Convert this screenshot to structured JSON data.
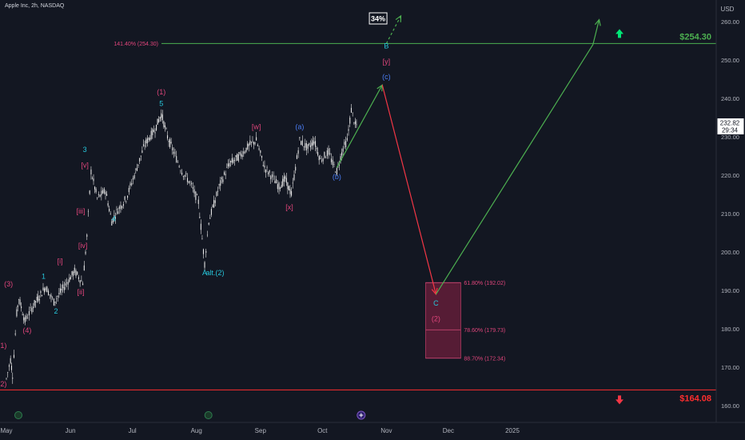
{
  "header": {
    "title": "Apple Inc, 2h, NASDAQ"
  },
  "colors": {
    "background": "#131722",
    "candle": "#e6e6e6",
    "wave_magenta": "#e0457b",
    "wave_cyan": "#26c6da",
    "wave_blue": "#4a7cf2",
    "target_green": "#4caf50",
    "arrow_red": "#f23645",
    "support_red": "#ff2e2e",
    "fib_zone": "#6d1f3c",
    "axis_text": "#b2b5be"
  },
  "chart_data": {
    "type": "candlestick",
    "symbol": "Apple Inc",
    "timeframe": "2h",
    "exchange": "NASDAQ",
    "currency": "USD",
    "x_labels": [
      "May",
      "Jun",
      "Jul",
      "Aug",
      "Sep",
      "Oct",
      "Nov",
      "Dec",
      "2025"
    ],
    "y_ticks": [
      160,
      170,
      180,
      190,
      200,
      210,
      220,
      230,
      240,
      250,
      260
    ],
    "ylim": [
      157,
      264
    ],
    "grid": false,
    "current_price": "232.82",
    "countdown": "29:34",
    "price_path": [
      {
        "d": "2024-05-01",
        "p": 167
      },
      {
        "d": "2024-05-03",
        "p": 172
      },
      {
        "d": "2024-05-04",
        "p": 168
      },
      {
        "d": "2024-05-06",
        "p": 184
      },
      {
        "d": "2024-05-07",
        "p": 188
      },
      {
        "d": "2024-05-10",
        "p": 182
      },
      {
        "d": "2024-05-14",
        "p": 186
      },
      {
        "d": "2024-05-20",
        "p": 191
      },
      {
        "d": "2024-05-24",
        "p": 187
      },
      {
        "d": "2024-06-03",
        "p": 195
      },
      {
        "d": "2024-06-07",
        "p": 192
      },
      {
        "d": "2024-06-09",
        "p": 204
      },
      {
        "d": "2024-06-11",
        "p": 221
      },
      {
        "d": "2024-06-14",
        "p": 214
      },
      {
        "d": "2024-06-18",
        "p": 216
      },
      {
        "d": "2024-06-21",
        "p": 208
      },
      {
        "d": "2024-06-24",
        "p": 211
      },
      {
        "d": "2024-06-28",
        "p": 214
      },
      {
        "d": "2024-07-02",
        "p": 220
      },
      {
        "d": "2024-07-07",
        "p": 228
      },
      {
        "d": "2024-07-12",
        "p": 232
      },
      {
        "d": "2024-07-15",
        "p": 236
      },
      {
        "d": "2024-07-18",
        "p": 230
      },
      {
        "d": "2024-07-21",
        "p": 226
      },
      {
        "d": "2024-07-25",
        "p": 221
      },
      {
        "d": "2024-07-29",
        "p": 218
      },
      {
        "d": "2024-08-02",
        "p": 213
      },
      {
        "d": "2024-08-05",
        "p": 197
      },
      {
        "d": "2024-08-07",
        "p": 208
      },
      {
        "d": "2024-08-12",
        "p": 217
      },
      {
        "d": "2024-08-17",
        "p": 223
      },
      {
        "d": "2024-08-22",
        "p": 225
      },
      {
        "d": "2024-08-27",
        "p": 228
      },
      {
        "d": "2024-08-30",
        "p": 229
      },
      {
        "d": "2024-09-03",
        "p": 222
      },
      {
        "d": "2024-09-06",
        "p": 220
      },
      {
        "d": "2024-09-10",
        "p": 217
      },
      {
        "d": "2024-09-13",
        "p": 219
      },
      {
        "d": "2024-09-16",
        "p": 215
      },
      {
        "d": "2024-09-20",
        "p": 229
      },
      {
        "d": "2024-09-24",
        "p": 227
      },
      {
        "d": "2024-09-27",
        "p": 229
      },
      {
        "d": "2024-09-30",
        "p": 224
      },
      {
        "d": "2024-10-04",
        "p": 226
      },
      {
        "d": "2024-10-06",
        "p": 223
      },
      {
        "d": "2024-10-08",
        "p": 221
      },
      {
        "d": "2024-10-11",
        "p": 227
      },
      {
        "d": "2024-10-13",
        "p": 229
      },
      {
        "d": "2024-10-15",
        "p": 237
      },
      {
        "d": "2024-10-17",
        "p": 233
      },
      {
        "d": "2024-10-18",
        "p": 232.82
      }
    ],
    "projection": {
      "up_b": [
        {
          "d": "2024-10-08",
          "p": 222
        },
        {
          "d": "2024-10-30",
          "p": 243.5
        }
      ],
      "alt_dashed": [
        {
          "d": "2024-11-01",
          "p": 254.3
        },
        {
          "d": "2024-11-08",
          "p": 261.5
        }
      ],
      "down_c": [
        {
          "d": "2024-10-30",
          "p": 243.5
        },
        {
          "d": "2024-11-25",
          "p": 189
        }
      ],
      "up_final": [
        {
          "d": "2024-11-25",
          "p": 189
        },
        {
          "d": "2025-02-09",
          "p": 254
        },
        {
          "d": "2025-02-12",
          "p": 260.5
        }
      ]
    },
    "levels": [
      {
        "label": "141.40% (254.30)",
        "value": 254.3,
        "price_label": "$254.30"
      },
      {
        "value": 164.08,
        "price_label": "$164.08"
      }
    ],
    "fib_zone": {
      "from": "2024-11-20",
      "to": "2024-12-07",
      "top": 192.02,
      "bottom": 172.34
    },
    "fib_levels": [
      {
        "label": "61.80% (192.02)",
        "value": 192.02
      },
      {
        "label": "78.60% (179.73)",
        "value": 179.73
      },
      {
        "label": "88.70% (172.34)",
        "value": 172.34
      }
    ],
    "probability_label": "34%",
    "wave_labels": [
      {
        "text": "(1)",
        "d": "2024-04-29",
        "p": 175,
        "color": "magenta"
      },
      {
        "text": "(2)",
        "d": "2024-04-29",
        "p": 165,
        "color": "magenta"
      },
      {
        "text": "(3)",
        "d": "2024-05-02",
        "p": 191,
        "color": "magenta"
      },
      {
        "text": "(4)",
        "d": "2024-05-11",
        "p": 179,
        "color": "magenta"
      },
      {
        "text": "1",
        "d": "2024-05-19",
        "p": 193,
        "color": "cyan"
      },
      {
        "text": "2",
        "d": "2024-05-25",
        "p": 184,
        "color": "cyan"
      },
      {
        "text": "[i]",
        "d": "2024-05-27",
        "p": 197,
        "color": "magenta"
      },
      {
        "text": "[ii]",
        "d": "2024-06-06",
        "p": 189,
        "color": "magenta"
      },
      {
        "text": "[iii]",
        "d": "2024-06-06",
        "p": 210,
        "color": "magenta"
      },
      {
        "text": "[iv]",
        "d": "2024-06-07",
        "p": 201,
        "color": "magenta"
      },
      {
        "text": "3",
        "d": "2024-06-08",
        "p": 226,
        "color": "cyan"
      },
      {
        "text": "[v]",
        "d": "2024-06-08",
        "p": 222,
        "color": "magenta"
      },
      {
        "text": "4",
        "d": "2024-06-22",
        "p": 208,
        "color": "cyan"
      },
      {
        "text": "(1)",
        "d": "2024-07-15",
        "p": 241,
        "color": "magenta"
      },
      {
        "text": "5",
        "d": "2024-07-15",
        "p": 238,
        "color": "cyan"
      },
      {
        "text": "A",
        "d": "2024-08-05",
        "p": 194,
        "color": "cyan"
      },
      {
        "text": "alt.(2)",
        "d": "2024-08-10",
        "p": 194,
        "color": "cyan"
      },
      {
        "text": "[w]",
        "d": "2024-08-30",
        "p": 232,
        "color": "magenta"
      },
      {
        "text": "(a)",
        "d": "2024-09-20",
        "p": 232,
        "color": "blue"
      },
      {
        "text": "[x]",
        "d": "2024-09-15",
        "p": 211,
        "color": "magenta"
      },
      {
        "text": "(b)",
        "d": "2024-10-08",
        "p": 219,
        "color": "blue"
      },
      {
        "text": "B",
        "d": "2024-11-01",
        "p": 253,
        "color": "cyan"
      },
      {
        "text": "[y]",
        "d": "2024-11-01",
        "p": 249,
        "color": "magenta"
      },
      {
        "text": "(c)",
        "d": "2024-11-01",
        "p": 245,
        "color": "blue"
      },
      {
        "text": "C",
        "d": "2024-11-25",
        "p": 186,
        "color": "cyan"
      },
      {
        "text": "(2)",
        "d": "2024-11-25",
        "p": 182,
        "color": "magenta"
      }
    ]
  }
}
